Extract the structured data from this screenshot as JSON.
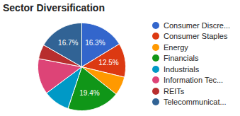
{
  "chart_data": {
    "type": "pie",
    "title": "Sector Diversification",
    "categories": [
      "Consumer Discre...",
      "Consumer Staples",
      "Energy",
      "Financials",
      "Industrials",
      "Information Tec...",
      "REITs",
      "Telecommunicat..."
    ],
    "values": [
      16.3,
      12.5,
      6.9,
      19.4,
      9.7,
      13.2,
      5.3,
      16.7
    ],
    "value_labels": [
      "16.3%",
      "12.5%",
      null,
      "19.4%",
      null,
      null,
      null,
      "16.7%"
    ],
    "colors": [
      "#3366cc",
      "#dc3912",
      "#ff9900",
      "#109618",
      "#0099c6",
      "#dd4477",
      "#b82e2e",
      "#316395"
    ],
    "data_labels": true,
    "legend": "right",
    "tick_labels": false
  }
}
